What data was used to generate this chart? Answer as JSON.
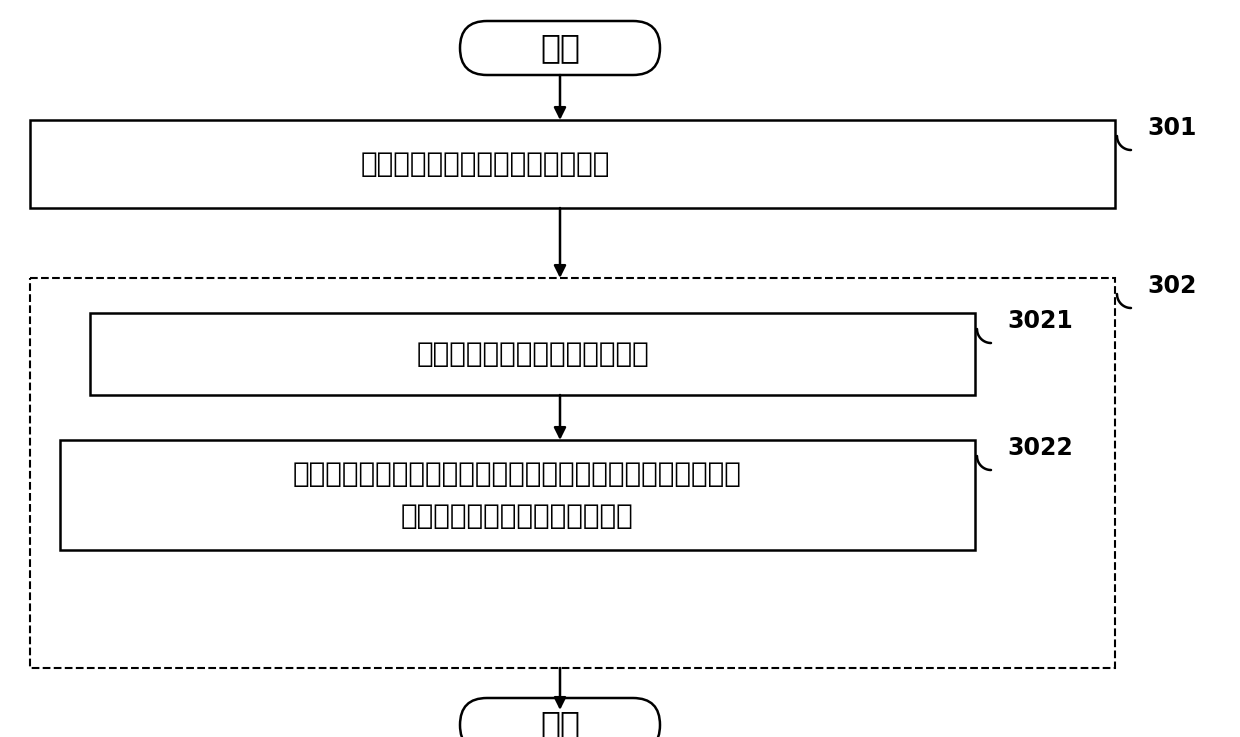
{
  "bg_color": "#ffffff",
  "start_label": "开始",
  "end_label": "结束",
  "box301_label": "实时获取终端的屏幕朝向的角度値",
  "box3021_label": "识别角度値所属的预设角度范围",
  "box3022_line1": "根据预设角度范围和各扬声器的角度与音效关系，获取各扬声",
  "box3022_line2": "器在预设角度范围下对应的音效",
  "label301": "301",
  "label302": "302",
  "label3021": "3021",
  "label3022": "3022",
  "line_color": "#000000",
  "font_size_box": 20,
  "font_size_label": 17,
  "font_size_terminal": 24,
  "lw": 1.8
}
